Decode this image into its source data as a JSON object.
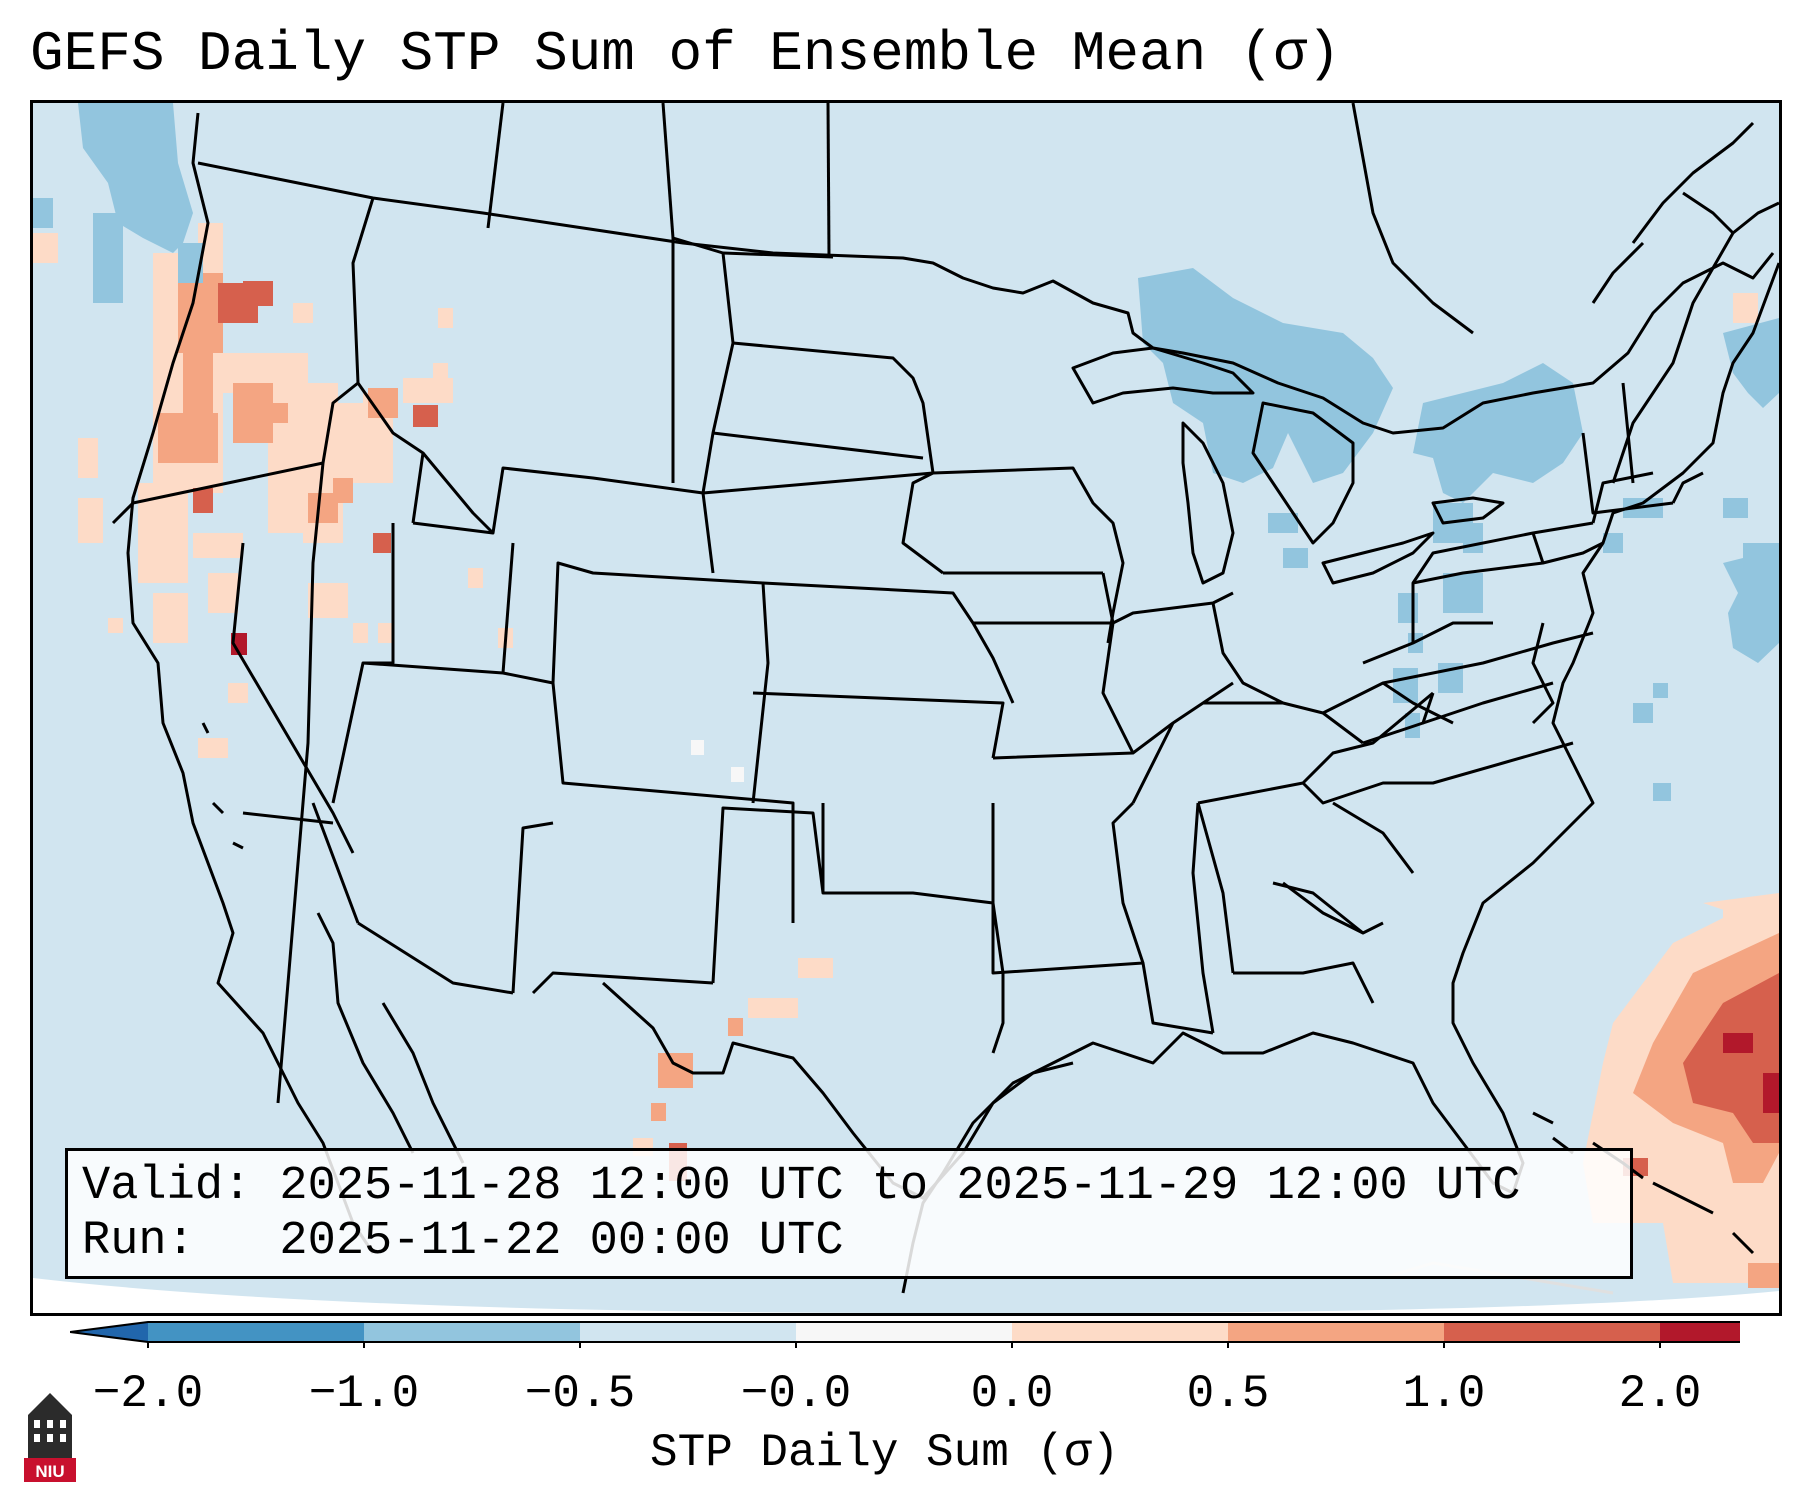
{
  "title": "GEFS Daily STP Sum of Ensemble Mean (σ)",
  "info": {
    "valid_line": "Valid: 2025-11-28 12:00 UTC to 2025-11-29 12:00 UTC",
    "run_line": "Run:   2025-11-22 00:00 UTC"
  },
  "colorbar": {
    "label": "STP Daily Sum (σ)",
    "ticks": [
      "−2.0",
      "−1.0",
      "−0.5",
      "−0.0",
      "0.0",
      "0.5",
      "1.0",
      "2.0"
    ],
    "colors": [
      "#4393c3",
      "#92c5de",
      "#d1e5f0",
      "#f7f7f7",
      "#fddbc7",
      "#f4a582",
      "#d6604d",
      "#b2182b"
    ],
    "extend_low_color": "#2166ac",
    "extend_high_color": "#b2182b",
    "background_category_color": "#d1e5f0"
  },
  "logo": {
    "text": "NIU",
    "color": "#c8102e"
  }
}
